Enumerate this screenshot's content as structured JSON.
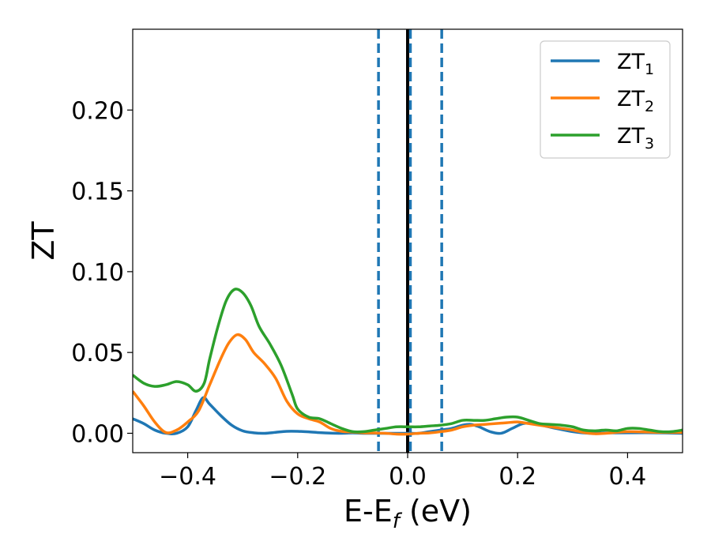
{
  "chart_data": {
    "type": "line",
    "xlabel": {
      "main": "E-E",
      "sub": "f",
      "unit": " (eV)"
    },
    "ylabel": "ZT",
    "xlim": [
      -0.5,
      0.5
    ],
    "ylim": [
      -0.012,
      0.25
    ],
    "xticks": [
      -0.4,
      -0.2,
      0.0,
      0.2,
      0.4
    ],
    "xtick_labels": [
      "−0.4",
      "−0.2",
      "0.0",
      "0.2",
      "0.4"
    ],
    "yticks": [
      0.0,
      0.05,
      0.1,
      0.15,
      0.2
    ],
    "ytick_labels": [
      "0.00",
      "0.05",
      "0.10",
      "0.15",
      "0.20"
    ],
    "grid": false,
    "legend_position": "top-right",
    "series": [
      {
        "name": "ZT",
        "sub": "1",
        "color": "#1f77b4",
        "points": [
          [
            -0.5,
            0.009
          ],
          [
            -0.48,
            0.006
          ],
          [
            -0.46,
            0.002
          ],
          [
            -0.44,
            0.0
          ],
          [
            -0.42,
            0.0
          ],
          [
            -0.4,
            0.004
          ],
          [
            -0.385,
            0.014
          ],
          [
            -0.372,
            0.022
          ],
          [
            -0.36,
            0.018
          ],
          [
            -0.34,
            0.011
          ],
          [
            -0.32,
            0.005
          ],
          [
            -0.3,
            0.0015
          ],
          [
            -0.28,
            0.0003
          ],
          [
            -0.26,
            0.0
          ],
          [
            -0.24,
            0.0006
          ],
          [
            -0.22,
            0.0012
          ],
          [
            -0.2,
            0.0012
          ],
          [
            -0.18,
            0.0009
          ],
          [
            -0.16,
            0.0004
          ],
          [
            -0.14,
            0.0001
          ],
          [
            -0.12,
            0.0
          ],
          [
            -0.1,
            0.0002
          ],
          [
            -0.08,
            0.0
          ],
          [
            -0.06,
            0.0
          ],
          [
            -0.04,
            0.0
          ],
          [
            -0.02,
            0.0
          ],
          [
            0.0,
            0.0
          ],
          [
            0.02,
            0.0
          ],
          [
            0.04,
            0.001
          ],
          [
            0.06,
            0.002
          ],
          [
            0.08,
            0.003
          ],
          [
            0.1,
            0.005
          ],
          [
            0.115,
            0.0055
          ],
          [
            0.13,
            0.004
          ],
          [
            0.15,
            0.001
          ],
          [
            0.17,
            0.0
          ],
          [
            0.19,
            0.003
          ],
          [
            0.21,
            0.006
          ],
          [
            0.23,
            0.006
          ],
          [
            0.25,
            0.0045
          ],
          [
            0.27,
            0.003
          ],
          [
            0.3,
            0.001
          ],
          [
            0.33,
            0.0
          ],
          [
            0.36,
            0.0002
          ],
          [
            0.4,
            0.0003
          ],
          [
            0.45,
            0.0003
          ],
          [
            0.5,
            0.0
          ]
        ]
      },
      {
        "name": "ZT",
        "sub": "2",
        "color": "#ff7f0e",
        "points": [
          [
            -0.5,
            0.026
          ],
          [
            -0.48,
            0.017
          ],
          [
            -0.46,
            0.007
          ],
          [
            -0.44,
            0.0005
          ],
          [
            -0.42,
            0.002
          ],
          [
            -0.4,
            0.007
          ],
          [
            -0.38,
            0.014
          ],
          [
            -0.36,
            0.03
          ],
          [
            -0.34,
            0.046
          ],
          [
            -0.325,
            0.056
          ],
          [
            -0.31,
            0.061
          ],
          [
            -0.295,
            0.058
          ],
          [
            -0.28,
            0.05
          ],
          [
            -0.26,
            0.043
          ],
          [
            -0.24,
            0.034
          ],
          [
            -0.22,
            0.02
          ],
          [
            -0.2,
            0.012
          ],
          [
            -0.18,
            0.009
          ],
          [
            -0.16,
            0.007
          ],
          [
            -0.14,
            0.003
          ],
          [
            -0.12,
            0.0012
          ],
          [
            -0.1,
            0.0007
          ],
          [
            -0.08,
            0.0003
          ],
          [
            -0.06,
            0.0002
          ],
          [
            -0.04,
            0.0
          ],
          [
            -0.02,
            -0.0005
          ],
          [
            0.0,
            -0.0005
          ],
          [
            0.02,
            0.0
          ],
          [
            0.04,
            0.0002
          ],
          [
            0.06,
            0.001
          ],
          [
            0.08,
            0.002
          ],
          [
            0.1,
            0.004
          ],
          [
            0.12,
            0.005
          ],
          [
            0.14,
            0.0055
          ],
          [
            0.16,
            0.006
          ],
          [
            0.18,
            0.0065
          ],
          [
            0.2,
            0.007
          ],
          [
            0.22,
            0.006
          ],
          [
            0.24,
            0.005
          ],
          [
            0.26,
            0.004
          ],
          [
            0.28,
            0.003
          ],
          [
            0.3,
            0.002
          ],
          [
            0.32,
            0.0005
          ],
          [
            0.34,
            -0.0003
          ],
          [
            0.36,
            0.0
          ],
          [
            0.4,
            0.001
          ],
          [
            0.45,
            0.0006
          ],
          [
            0.5,
            0.0005
          ]
        ]
      },
      {
        "name": "ZT",
        "sub": "3",
        "color": "#2ca02c",
        "points": [
          [
            -0.5,
            0.036
          ],
          [
            -0.48,
            0.031
          ],
          [
            -0.46,
            0.029
          ],
          [
            -0.44,
            0.03
          ],
          [
            -0.42,
            0.032
          ],
          [
            -0.4,
            0.03
          ],
          [
            -0.385,
            0.026
          ],
          [
            -0.37,
            0.031
          ],
          [
            -0.36,
            0.046
          ],
          [
            -0.345,
            0.066
          ],
          [
            -0.33,
            0.082
          ],
          [
            -0.315,
            0.089
          ],
          [
            -0.3,
            0.087
          ],
          [
            -0.285,
            0.079
          ],
          [
            -0.27,
            0.066
          ],
          [
            -0.25,
            0.055
          ],
          [
            -0.23,
            0.042
          ],
          [
            -0.21,
            0.024
          ],
          [
            -0.2,
            0.015
          ],
          [
            -0.18,
            0.01
          ],
          [
            -0.16,
            0.009
          ],
          [
            -0.14,
            0.006
          ],
          [
            -0.12,
            0.003
          ],
          [
            -0.1,
            0.001
          ],
          [
            -0.08,
            0.001
          ],
          [
            -0.06,
            0.002
          ],
          [
            -0.04,
            0.003
          ],
          [
            -0.02,
            0.004
          ],
          [
            0.0,
            0.004
          ],
          [
            0.02,
            0.004
          ],
          [
            0.04,
            0.0045
          ],
          [
            0.06,
            0.005
          ],
          [
            0.08,
            0.006
          ],
          [
            0.1,
            0.008
          ],
          [
            0.12,
            0.008
          ],
          [
            0.14,
            0.008
          ],
          [
            0.16,
            0.009
          ],
          [
            0.18,
            0.01
          ],
          [
            0.2,
            0.01
          ],
          [
            0.22,
            0.008
          ],
          [
            0.24,
            0.006
          ],
          [
            0.26,
            0.0055
          ],
          [
            0.28,
            0.005
          ],
          [
            0.3,
            0.004
          ],
          [
            0.32,
            0.002
          ],
          [
            0.34,
            0.0015
          ],
          [
            0.36,
            0.002
          ],
          [
            0.38,
            0.0015
          ],
          [
            0.4,
            0.003
          ],
          [
            0.42,
            0.003
          ],
          [
            0.44,
            0.002
          ],
          [
            0.46,
            0.001
          ],
          [
            0.48,
            0.001
          ],
          [
            0.5,
            0.002
          ]
        ]
      }
    ],
    "vlines": [
      {
        "x": 0.0,
        "color": "#000000",
        "style": "solid"
      },
      {
        "x": -0.053,
        "color": "#1f77b4",
        "style": "dashed"
      },
      {
        "x": 0.005,
        "color": "#1f77b4",
        "style": "dashed"
      },
      {
        "x": 0.062,
        "color": "#1f77b4",
        "style": "dashed"
      }
    ]
  }
}
